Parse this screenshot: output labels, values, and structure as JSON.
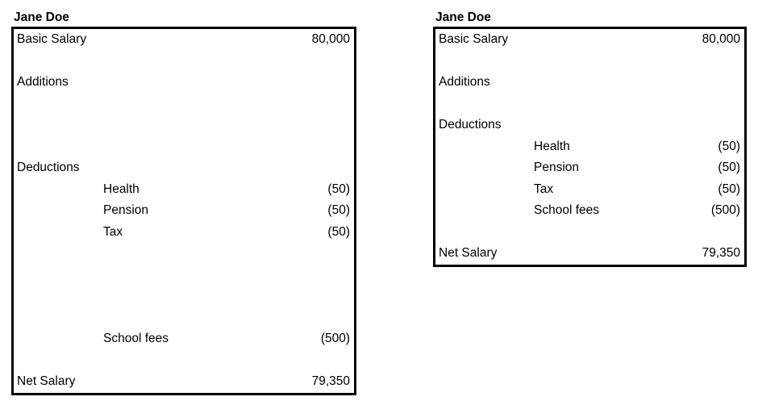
{
  "page": {
    "background": "#ffffff"
  },
  "colors": {
    "border": "#000000",
    "text": "#000000"
  },
  "statements": [
    {
      "title": "Jane Doe",
      "rows": [
        {
          "label": "Basic Salary",
          "value": "80,000",
          "indent": 0
        },
        {
          "label": "",
          "value": "",
          "indent": 0
        },
        {
          "label": "Additions",
          "value": "",
          "indent": 0
        },
        {
          "label": "",
          "value": "",
          "indent": 0
        },
        {
          "label": "",
          "value": "",
          "indent": 0
        },
        {
          "label": "",
          "value": "",
          "indent": 0
        },
        {
          "label": "Deductions",
          "value": "",
          "indent": 0
        },
        {
          "label": "Health",
          "value": "(50)",
          "indent": 1
        },
        {
          "label": "Pension",
          "value": "(50)",
          "indent": 1
        },
        {
          "label": "Tax",
          "value": "(50)",
          "indent": 1
        },
        {
          "label": "",
          "value": "",
          "indent": 0
        },
        {
          "label": "",
          "value": "",
          "indent": 0
        },
        {
          "label": "",
          "value": "",
          "indent": 0
        },
        {
          "label": "",
          "value": "",
          "indent": 0
        },
        {
          "label": "School fees",
          "value": "(500)",
          "indent": 1
        },
        {
          "label": "",
          "value": "",
          "indent": 0
        },
        {
          "label": "Net Salary",
          "value": "79,350",
          "indent": 0
        }
      ]
    },
    {
      "title": "Jane Doe",
      "rows": [
        {
          "label": "Basic Salary",
          "value": "80,000",
          "indent": 0
        },
        {
          "label": "",
          "value": "",
          "indent": 0
        },
        {
          "label": "Additions",
          "value": "",
          "indent": 0
        },
        {
          "label": "",
          "value": "",
          "indent": 0
        },
        {
          "label": "Deductions",
          "value": "",
          "indent": 0
        },
        {
          "label": "Health",
          "value": "(50)",
          "indent": 1
        },
        {
          "label": "Pension",
          "value": "(50)",
          "indent": 1
        },
        {
          "label": "Tax",
          "value": "(50)",
          "indent": 1
        },
        {
          "label": "School fees",
          "value": "(500)",
          "indent": 1
        },
        {
          "label": "",
          "value": "",
          "indent": 0
        },
        {
          "label": "Net Salary",
          "value": "79,350",
          "indent": 0
        }
      ]
    }
  ]
}
